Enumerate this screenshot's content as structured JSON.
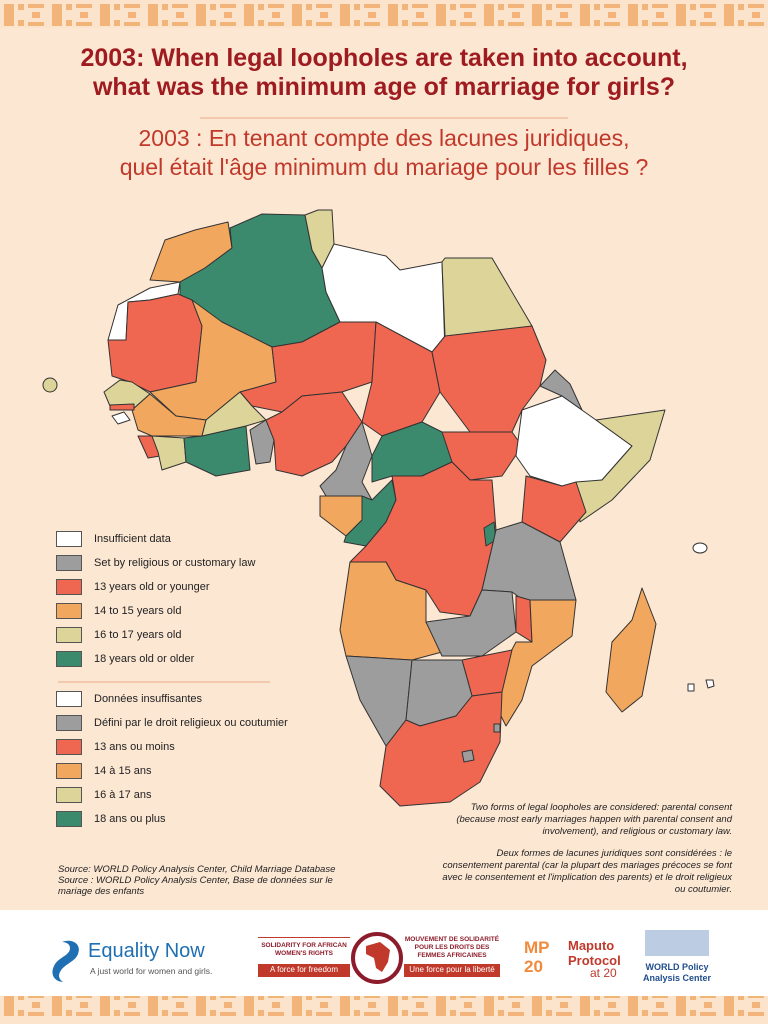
{
  "header": {
    "title_en": [
      "2003: When legal loopholes are taken into account,",
      "what was the minimum age of marriage for girls?"
    ],
    "title_fr": [
      "2003 : En tenant compte des lacunes juridiques,",
      "quel était l'âge minimum du mariage pour les filles ?"
    ]
  },
  "legend": {
    "items": [
      {
        "label": "Insufficient data",
        "label_fr": "Données insuffisantes",
        "color": "#ffffff"
      },
      {
        "label": "Set by religious or customary law",
        "label_fr": "Défini par le droit religieux ou coutumier",
        "color": "#9d9d9d"
      },
      {
        "label": "13 years old or younger",
        "label_fr": "13 ans ou moins",
        "color": "#ef6651"
      },
      {
        "label": "14 to 15 years old",
        "label_fr": "14 à 15 ans",
        "color": "#f2a75e"
      },
      {
        "label": "16 to 17 years old",
        "label_fr": "16 à 17 ans",
        "color": "#dcd498"
      },
      {
        "label": "18 years old or older",
        "label_fr": "18 ans ou plus",
        "color": "#3c8a6e"
      }
    ]
  },
  "notes": {
    "en": "Two forms of legal loopholes are considered: parental consent (because most early marriages happen with parental consent and involvement), and religious or customary law.",
    "fr": "Deux formes de lacunes juridiques sont considérées : le consentement parental (car la plupart des mariages précoces se font avec le consentement et l'implication des parents) et le droit religieux ou coutumier."
  },
  "source": {
    "en": "Source: WORLD Policy Analysis Center, Child Marriage Database",
    "fr": "Source : WORLD Policy Analysis Center, Base de données sur le mariage des enfants"
  },
  "logos": {
    "equality_now": {
      "name": "Equality Now",
      "tagline": "A just world for women and girls."
    },
    "solidarity": {
      "en_name": "SOLIDARITY FOR AFRICAN WOMEN'S RIGHTS",
      "en_tagline": "A force for freedom",
      "fr_name": "MOUVEMENT DE SOLIDARITÉ POUR LES DROITS DES FEMMES AFRICAINES",
      "fr_tagline": "Une force pour la liberté"
    },
    "maputo": {
      "mark": "MP 20",
      "name": "Maputo Protocol",
      "sub": "at 20"
    },
    "world": {
      "name": "WORLD Policy Analysis Center"
    }
  }
}
